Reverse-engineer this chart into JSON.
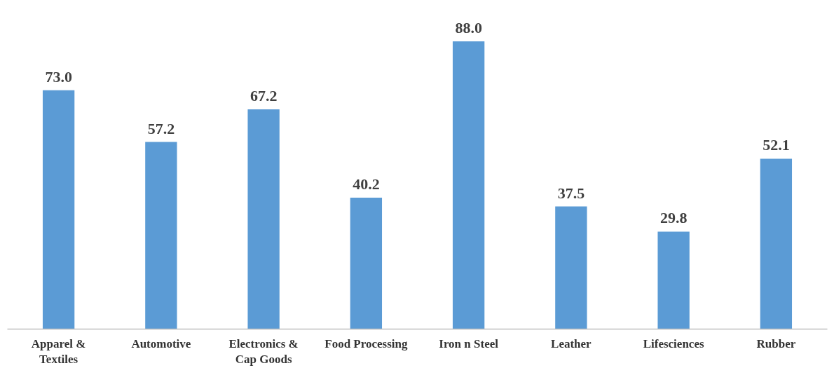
{
  "chart_data": {
    "type": "bar",
    "categories": [
      "Apparel &\nTextiles",
      "Automotive",
      "Electronics &\nCap Goods",
      "Food Processing",
      "Iron n Steel",
      "Leather",
      "Lifesciences",
      "Rubber"
    ],
    "values": [
      73.0,
      57.2,
      67.2,
      40.2,
      88.0,
      37.5,
      29.8,
      52.1
    ],
    "value_labels": [
      "73.0",
      "57.2",
      "67.2",
      "40.2",
      "88.0",
      "37.5",
      "29.8",
      "52.1"
    ],
    "color": "#5b9bd5",
    "tick_labels": "x",
    "grid": false
  }
}
